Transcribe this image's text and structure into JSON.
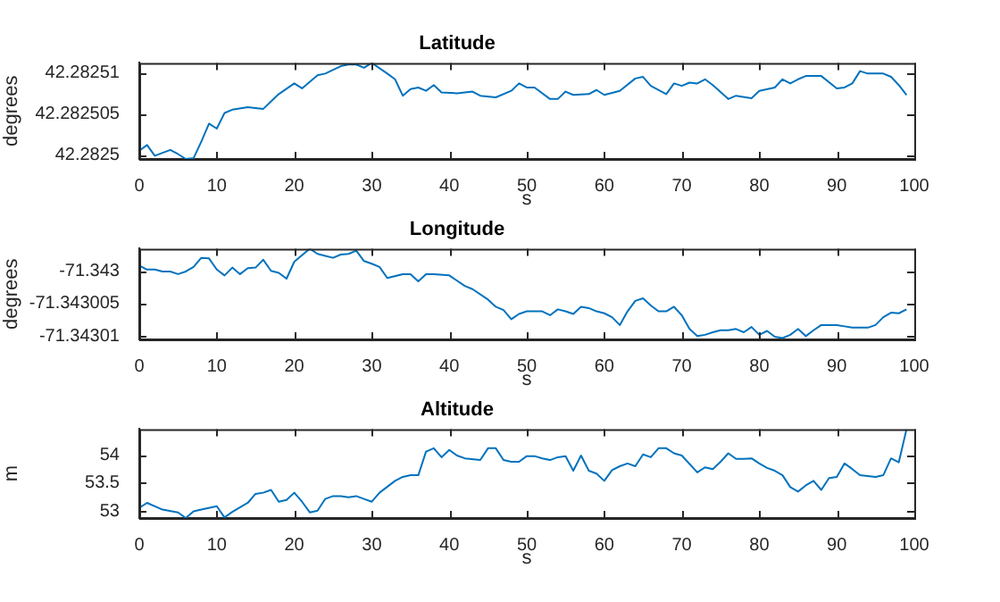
{
  "chart_data": [
    {
      "type": "line",
      "title": "Latitude",
      "xlabel": "s",
      "ylabel": "degrees",
      "xlim": [
        0,
        100
      ],
      "xticks": [
        0,
        10,
        20,
        30,
        40,
        50,
        60,
        70,
        80,
        90,
        100
      ],
      "ylim": [
        42.2824995,
        42.2825112
      ],
      "yticks": [
        42.2825,
        42.282505,
        42.28251
      ],
      "x": [
        0,
        1,
        2,
        4,
        5,
        6,
        7,
        8,
        9,
        10,
        11,
        12,
        14,
        16,
        18,
        20,
        21,
        23,
        24,
        26,
        27,
        28,
        29,
        30,
        32,
        33,
        34,
        35,
        36,
        37,
        38,
        39,
        41,
        43,
        44,
        46,
        48,
        49,
        50,
        51,
        53,
        54,
        55,
        56,
        58,
        59,
        60,
        62,
        64,
        65,
        66,
        68,
        69,
        70,
        71,
        72,
        73,
        74,
        76,
        77,
        79,
        80,
        82,
        83,
        84,
        85,
        86,
        88,
        90,
        91,
        92,
        93,
        94,
        96,
        97,
        98,
        99
      ],
      "series": [
        {
          "color": "#0072bd",
          "values": [
            42.2825005,
            42.2825012,
            42.2824999,
            42.2825006,
            42.2825001,
            42.2824995,
            42.2824996,
            42.2825016,
            42.2825038,
            42.2825032,
            42.2825051,
            42.2825055,
            42.2825058,
            42.2825056,
            42.2825074,
            42.2825087,
            42.2825081,
            42.2825097,
            42.2825099,
            42.2825108,
            42.282511,
            42.282511,
            42.2825106,
            42.2825112,
            42.2825099,
            42.2825092,
            42.2825072,
            42.282508,
            42.2825082,
            42.2825078,
            42.2825085,
            42.2825076,
            42.2825075,
            42.2825077,
            42.2825072,
            42.282507,
            42.2825078,
            42.2825087,
            42.2825082,
            42.2825082,
            42.2825068,
            42.2825068,
            42.2825077,
            42.2825073,
            42.2825074,
            42.2825079,
            42.2825073,
            42.2825078,
            42.2825093,
            42.2825095,
            42.2825084,
            42.2825074,
            42.2825087,
            42.2825084,
            42.2825088,
            42.2825087,
            42.2825092,
            42.2825085,
            42.2825068,
            42.2825072,
            42.2825069,
            42.2825078,
            42.2825082,
            42.2825092,
            42.2825087,
            42.2825092,
            42.2825096,
            42.2825096,
            42.2825081,
            42.2825082,
            42.2825087,
            42.2825102,
            42.2825099,
            42.2825099,
            42.2825095,
            42.2825085,
            42.2825073
          ]
        }
      ]
    },
    {
      "type": "line",
      "title": "Longitude",
      "xlabel": "s",
      "ylabel": "degrees",
      "xlim": [
        0,
        100
      ],
      "xticks": [
        0,
        10,
        20,
        30,
        40,
        50,
        60,
        70,
        80,
        90,
        100
      ],
      "ylim": [
        -71.3430105,
        -71.3429966
      ],
      "yticks": [
        -71.34301,
        -71.343005,
        -71.343
      ],
      "x": [
        0,
        1,
        2,
        3,
        4,
        5,
        6,
        7,
        8,
        9,
        10,
        11,
        12,
        13,
        14,
        15,
        16,
        17,
        18,
        19,
        20,
        22,
        23,
        24,
        25,
        26,
        27,
        28,
        29,
        30,
        31,
        32,
        34,
        35,
        36,
        37,
        38,
        40,
        42,
        43,
        45,
        46,
        47,
        48,
        49,
        50,
        52,
        53,
        54,
        55,
        56,
        57,
        58,
        59,
        60,
        61,
        62,
        63,
        64,
        65,
        66,
        67,
        68,
        69,
        70,
        71,
        72,
        73,
        74,
        75,
        76,
        77,
        78,
        79,
        80,
        81,
        82,
        83,
        84,
        85,
        86,
        87,
        88,
        90,
        91,
        92,
        94,
        95,
        96,
        97,
        98,
        99
      ],
      "series": [
        {
          "color": "#0072bd",
          "values": [
            -71.3429992,
            -71.3429998,
            -71.3429998,
            -71.3430001,
            -71.3430001,
            -71.3430005,
            -71.3430001,
            -71.3429994,
            -71.342998,
            -71.3429981,
            -71.3429998,
            -71.3430007,
            -71.3429995,
            -71.3430005,
            -71.3429996,
            -71.3429995,
            -71.3429983,
            -71.343,
            -71.3430003,
            -71.3430012,
            -71.3429986,
            -71.3429966,
            -71.3429974,
            -71.3429977,
            -71.342998,
            -71.3429975,
            -71.3429974,
            -71.3429969,
            -71.3429985,
            -71.3429989,
            -71.3429994,
            -71.3430011,
            -71.3430005,
            -71.3430005,
            -71.3430016,
            -71.3430005,
            -71.3430005,
            -71.3430007,
            -71.3430023,
            -71.3430028,
            -71.3430044,
            -71.3430055,
            -71.343006,
            -71.3430074,
            -71.3430066,
            -71.3430062,
            -71.3430062,
            -71.3430068,
            -71.3430059,
            -71.3430062,
            -71.3430066,
            -71.3430055,
            -71.3430057,
            -71.3430062,
            -71.3430065,
            -71.3430071,
            -71.3430083,
            -71.3430062,
            -71.3430046,
            -71.3430042,
            -71.3430053,
            -71.3430062,
            -71.3430062,
            -71.3430055,
            -71.3430068,
            -71.3430089,
            -71.34301,
            -71.3430098,
            -71.3430094,
            -71.3430091,
            -71.3430091,
            -71.3430089,
            -71.3430094,
            -71.3430086,
            -71.3430098,
            -71.3430092,
            -71.3430101,
            -71.3430103,
            -71.3430098,
            -71.3430089,
            -71.34301,
            -71.3430091,
            -71.3430083,
            -71.3430083,
            -71.3430085,
            -71.3430087,
            -71.3430087,
            -71.3430083,
            -71.3430071,
            -71.3430064,
            -71.3430065,
            -71.3430059
          ]
        }
      ]
    },
    {
      "type": "line",
      "title": "Altitude",
      "xlabel": "s",
      "ylabel": "m",
      "xlim": [
        0,
        100
      ],
      "xticks": [
        0,
        10,
        20,
        30,
        40,
        50,
        60,
        70,
        80,
        90,
        100
      ],
      "ylim": [
        52.88,
        54.46
      ],
      "yticks": [
        53,
        53.5,
        54
      ],
      "x": [
        0,
        1,
        3,
        5,
        6,
        7,
        8,
        10,
        11,
        12,
        14,
        15,
        16,
        17,
        18,
        19,
        20,
        21,
        22,
        23,
        24,
        25,
        26,
        27,
        28,
        29,
        30,
        31,
        33,
        34,
        35,
        36,
        37,
        38,
        39,
        40,
        41,
        42,
        44,
        45,
        46,
        47,
        48,
        49,
        50,
        51,
        52,
        53,
        54,
        55,
        56,
        57,
        58,
        59,
        60,
        61,
        62,
        63,
        64,
        65,
        66,
        67,
        68,
        69,
        70,
        72,
        73,
        74,
        75,
        76,
        77,
        78,
        79,
        80,
        81,
        82,
        83,
        84,
        85,
        86,
        87,
        88,
        89,
        90,
        91,
        92,
        93,
        95,
        96,
        97,
        98,
        99
      ],
      "series": [
        {
          "color": "#0072bd",
          "values": [
            53.06,
            53.15,
            53.03,
            52.98,
            52.88,
            53.0,
            53.03,
            53.09,
            52.89,
            52.99,
            53.15,
            53.31,
            53.33,
            53.38,
            53.17,
            53.2,
            53.33,
            53.17,
            52.98,
            53.01,
            53.22,
            53.27,
            53.27,
            53.25,
            53.27,
            53.22,
            53.17,
            53.33,
            53.54,
            53.61,
            53.64,
            53.64,
            54.06,
            54.12,
            53.96,
            54.09,
            53.99,
            53.94,
            53.91,
            54.12,
            54.12,
            53.91,
            53.88,
            53.88,
            53.98,
            53.98,
            53.94,
            53.91,
            53.96,
            53.98,
            53.72,
            53.99,
            53.72,
            53.67,
            53.54,
            53.73,
            53.8,
            53.85,
            53.8,
            54.01,
            53.96,
            54.12,
            54.12,
            54.03,
            53.99,
            53.69,
            53.78,
            53.75,
            53.88,
            54.03,
            53.93,
            53.93,
            53.94,
            53.85,
            53.77,
            53.72,
            53.64,
            53.43,
            53.35,
            53.46,
            53.54,
            53.38,
            53.59,
            53.61,
            53.85,
            53.75,
            53.64,
            53.61,
            53.64,
            53.94,
            53.87,
            54.46
          ]
        }
      ]
    }
  ]
}
